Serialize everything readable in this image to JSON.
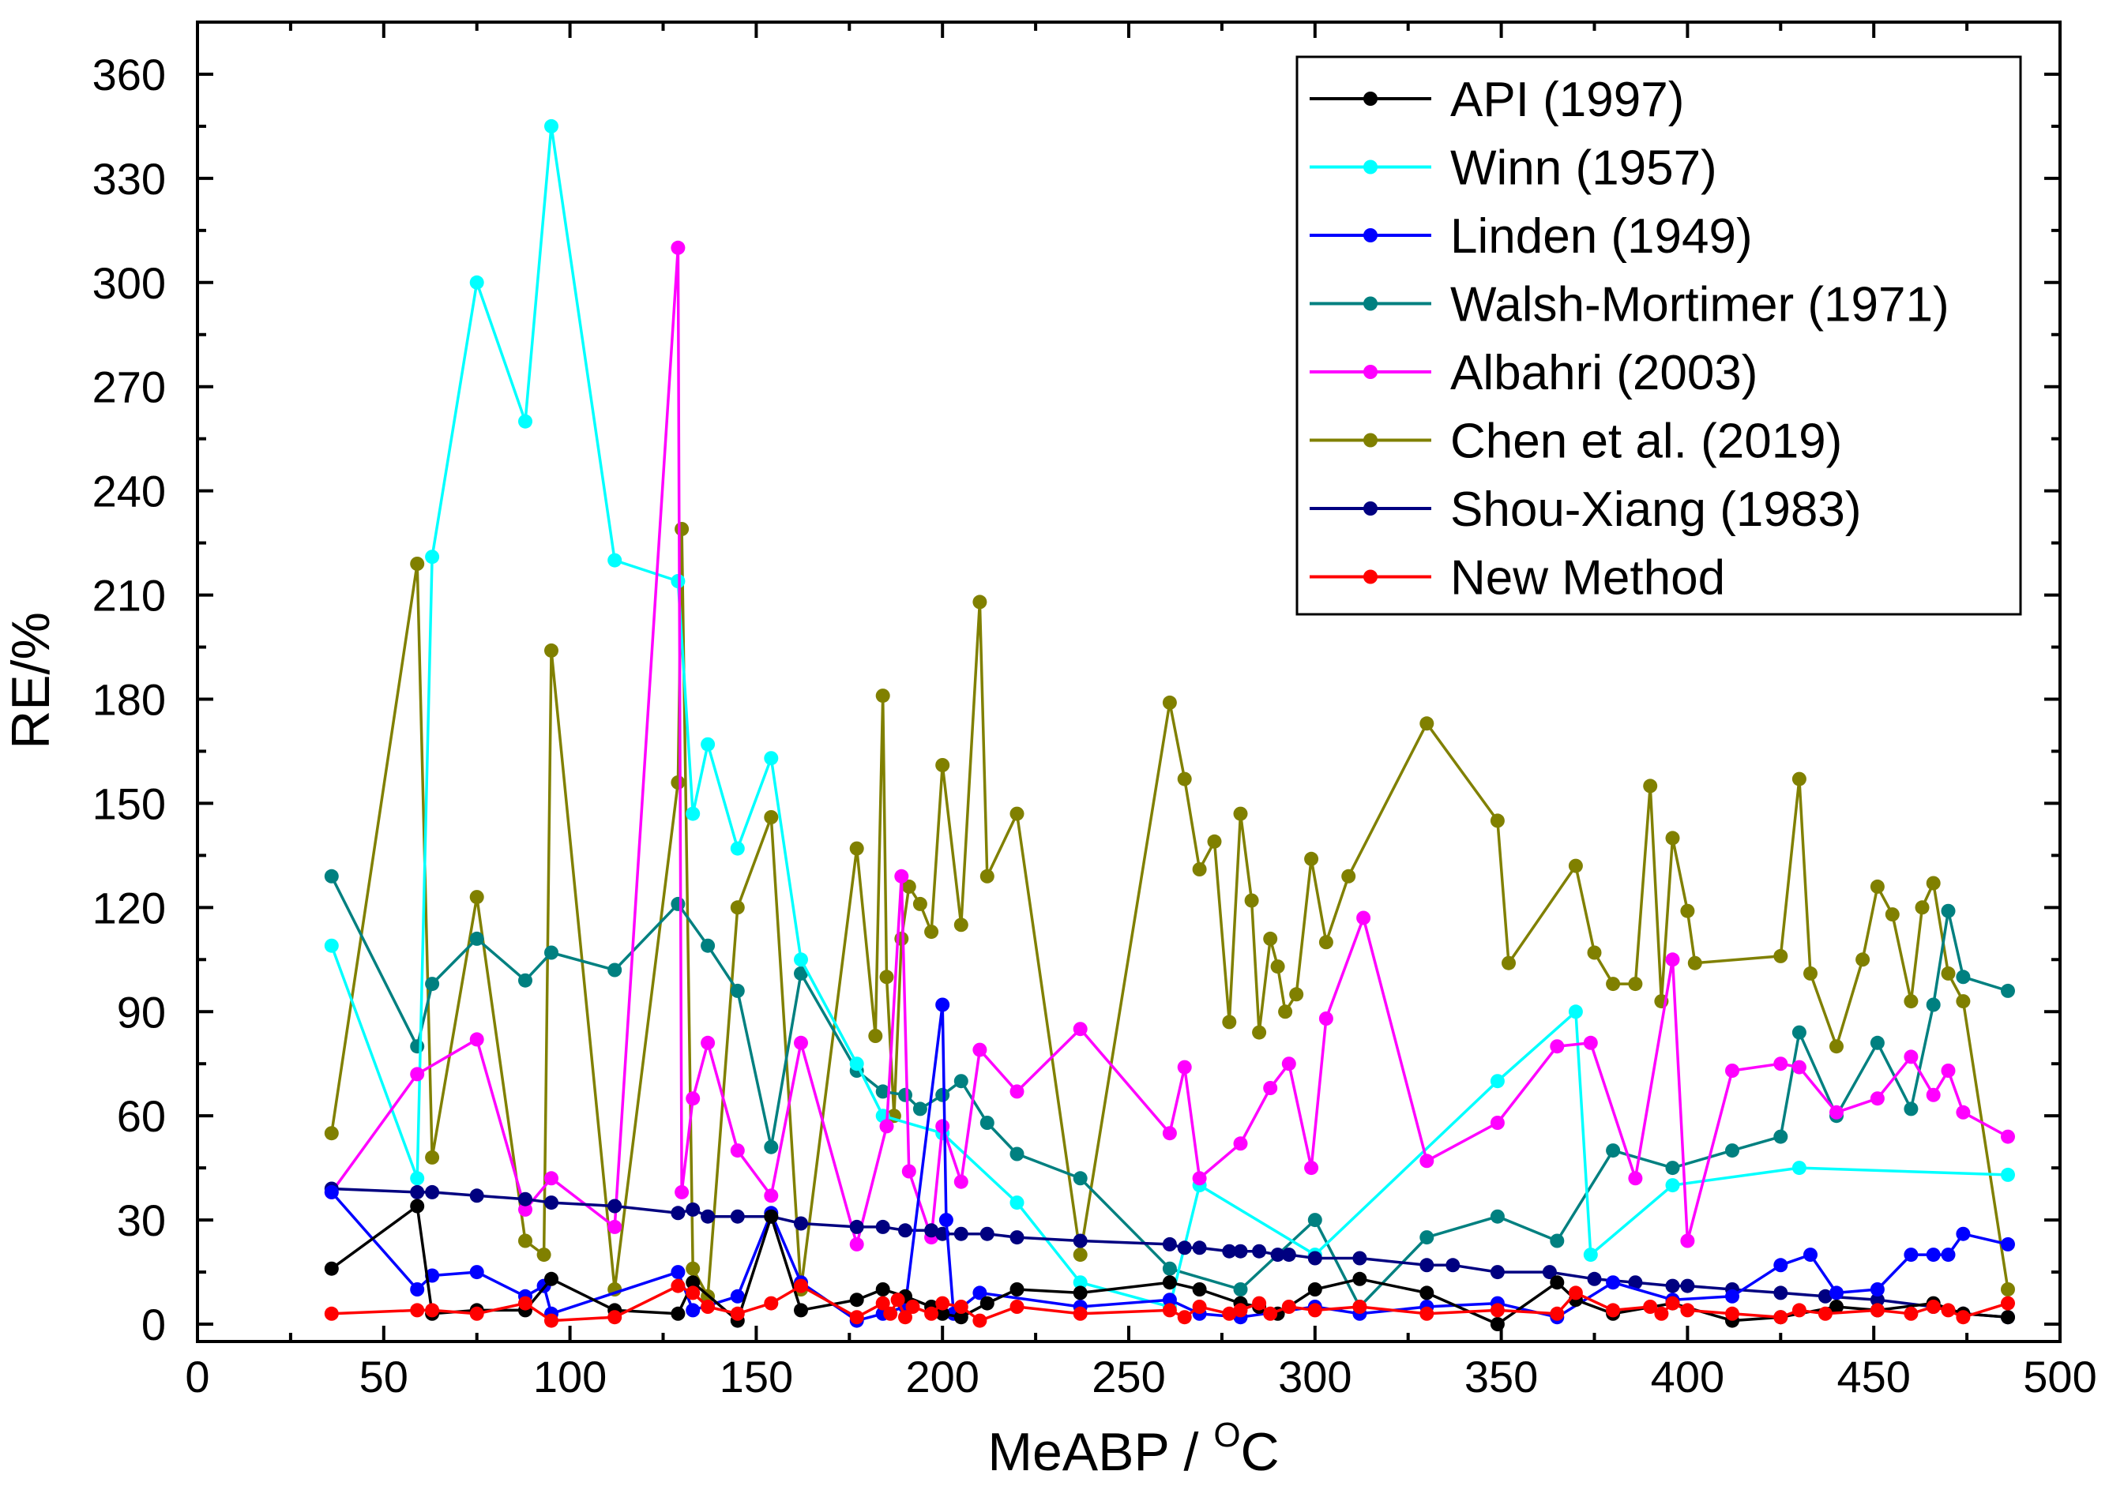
{
  "chart_data": {
    "type": "line",
    "title": "",
    "xlabel": "MeABP / ",
    "xlabel_unit_sup": "O",
    "xlabel_unit": "C",
    "ylabel": "RE/%",
    "xlim": [
      0,
      500
    ],
    "ylim": [
      -5,
      375
    ],
    "x_ticks": [
      0,
      50,
      100,
      150,
      200,
      250,
      300,
      350,
      400,
      450,
      500
    ],
    "x_tick_labels": [
      "0",
      "50",
      "100",
      "150",
      "200",
      "250",
      "300",
      "350",
      "400",
      "450",
      "500"
    ],
    "y_ticks": [
      0,
      30,
      60,
      90,
      120,
      150,
      180,
      210,
      240,
      270,
      300,
      330,
      360
    ],
    "y_tick_labels": [
      "0",
      "30",
      "60",
      "90",
      "120",
      "150",
      "180",
      "210",
      "240",
      "270",
      "300",
      "330",
      "360"
    ],
    "legend_position": "top-right",
    "series": [
      {
        "name": "Chen et al. (2019)",
        "color": "#808000",
        "x": [
          36,
          59,
          63,
          75,
          88,
          93,
          95,
          112,
          129,
          130,
          133,
          137,
          145,
          154,
          162,
          177,
          182,
          184,
          185,
          187,
          189,
          191,
          194,
          197,
          200,
          205,
          210,
          212,
          220,
          237,
          261,
          265,
          269,
          273,
          277,
          280,
          283,
          285,
          288,
          290,
          292,
          295,
          299,
          303,
          309,
          330,
          349,
          352,
          370,
          375,
          380,
          386,
          390,
          393,
          396,
          400,
          402,
          425,
          430,
          433,
          440,
          447,
          451,
          455,
          460,
          463,
          466,
          470,
          474,
          486
        ],
        "y": [
          55,
          219,
          48,
          123,
          24,
          20,
          194,
          10,
          156,
          229,
          16,
          8,
          120,
          146,
          10,
          137,
          83,
          181,
          100,
          60,
          111,
          126,
          121,
          113,
          161,
          115,
          208,
          129,
          147,
          20,
          179,
          157,
          131,
          139,
          87,
          147,
          122,
          84,
          111,
          103,
          90,
          95,
          134,
          110,
          129,
          173,
          145,
          104,
          132,
          107,
          98,
          98,
          155,
          93,
          140,
          119,
          104,
          106,
          157,
          101,
          80,
          105,
          126,
          118,
          93,
          120,
          127,
          101,
          93,
          10
        ]
      },
      {
        "name": "Walsh-Mortimer (1971)",
        "color": "#008080",
        "x": [
          36,
          59,
          63,
          75,
          88,
          95,
          112,
          129,
          137,
          145,
          154,
          162,
          177,
          184,
          190,
          194,
          200,
          205,
          212,
          220,
          237,
          261,
          280,
          300,
          312,
          330,
          349,
          365,
          380,
          396,
          412,
          425,
          430,
          440,
          451,
          460,
          466,
          470,
          474,
          486
        ],
        "y": [
          129,
          80,
          98,
          111,
          99,
          107,
          102,
          121,
          109,
          96,
          51,
          101,
          73,
          67,
          66,
          62,
          66,
          70,
          58,
          49,
          42,
          16,
          10,
          30,
          5,
          25,
          31,
          24,
          50,
          45,
          50,
          54,
          84,
          60,
          81,
          62,
          92,
          119,
          100,
          96
        ]
      },
      {
        "name": "Winn (1957)",
        "color": "#00ffff",
        "x": [
          36,
          59,
          63,
          75,
          88,
          95,
          112,
          129,
          133,
          137,
          145,
          154,
          162,
          177,
          184,
          200,
          220,
          237,
          261,
          269,
          300,
          349,
          370,
          374,
          396,
          430,
          486
        ],
        "y": [
          109,
          42,
          221,
          300,
          260,
          345,
          220,
          214,
          147,
          167,
          137,
          163,
          105,
          75,
          60,
          55,
          35,
          12,
          5,
          40,
          20,
          70,
          90,
          20,
          40,
          45,
          43
        ]
      },
      {
        "name": "Albahri (2003)",
        "color": "#ff00ff",
        "x": [
          36,
          59,
          75,
          88,
          95,
          112,
          129,
          130,
          133,
          137,
          145,
          154,
          162,
          177,
          185,
          189,
          191,
          197,
          200,
          205,
          210,
          220,
          237,
          261,
          265,
          269,
          280,
          288,
          293,
          299,
          303,
          313,
          330,
          349,
          365,
          374,
          386,
          396,
          400,
          412,
          425,
          430,
          440,
          451,
          460,
          466,
          470,
          474,
          486
        ],
        "y": [
          38,
          72,
          82,
          33,
          42,
          28,
          310,
          38,
          65,
          81,
          50,
          37,
          81,
          23,
          57,
          129,
          44,
          25,
          57,
          41,
          79,
          67,
          85,
          55,
          74,
          42,
          52,
          68,
          75,
          45,
          88,
          117,
          47,
          58,
          80,
          81,
          42,
          105,
          24,
          73,
          75,
          74,
          61,
          65,
          77,
          66,
          73,
          61,
          54
        ]
      },
      {
        "name": "Shou-Xiang (1983)",
        "color": "#000080",
        "x": [
          36,
          59,
          63,
          75,
          88,
          95,
          112,
          129,
          133,
          137,
          145,
          154,
          162,
          177,
          184,
          190,
          197,
          200,
          205,
          212,
          220,
          237,
          261,
          265,
          269,
          277,
          280,
          285,
          290,
          293,
          300,
          312,
          330,
          337,
          349,
          363,
          375,
          386,
          396,
          400,
          412,
          425,
          437,
          451,
          466,
          474,
          486
        ],
        "y": [
          39,
          38,
          38,
          37,
          36,
          35,
          34,
          32,
          33,
          31,
          31,
          31,
          29,
          28,
          28,
          27,
          27,
          26,
          26,
          26,
          25,
          24,
          23,
          22,
          22,
          21,
          21,
          21,
          20,
          20,
          19,
          19,
          17,
          17,
          15,
          15,
          13,
          12,
          11,
          11,
          10,
          9,
          8,
          7,
          5,
          3,
          2
        ]
      },
      {
        "name": "Linden (1949)",
        "color": "#0000ff",
        "x": [
          36,
          59,
          63,
          75,
          88,
          93,
          95,
          129,
          133,
          145,
          154,
          162,
          177,
          184,
          190,
          200,
          201,
          203,
          210,
          237,
          261,
          269,
          280,
          300,
          312,
          330,
          349,
          365,
          380,
          396,
          412,
          425,
          433,
          440,
          451,
          460,
          466,
          470,
          474,
          486
        ],
        "y": [
          38,
          10,
          14,
          15,
          8,
          11,
          3,
          15,
          4,
          8,
          32,
          12,
          1,
          3,
          5,
          92,
          30,
          3,
          9,
          5,
          7,
          3,
          2,
          5,
          3,
          5,
          6,
          2,
          12,
          7,
          8,
          17,
          20,
          9,
          10,
          20,
          20,
          20,
          26,
          23
        ]
      },
      {
        "name": "API (1997)",
        "color": "#000000",
        "x": [
          36,
          59,
          63,
          75,
          88,
          95,
          112,
          129,
          133,
          145,
          154,
          162,
          177,
          184,
          190,
          197,
          200,
          205,
          212,
          220,
          237,
          261,
          269,
          280,
          285,
          290,
          300,
          312,
          330,
          349,
          365,
          370,
          380,
          396,
          412,
          425,
          440,
          451,
          466,
          474,
          486
        ],
        "y": [
          16,
          34,
          3,
          4,
          4,
          13,
          4,
          3,
          12,
          1,
          31,
          4,
          7,
          10,
          8,
          5,
          3,
          2,
          6,
          10,
          9,
          12,
          10,
          6,
          5,
          3,
          10,
          13,
          9,
          0,
          12,
          7,
          3,
          6,
          1,
          2,
          5,
          4,
          6,
          3,
          2
        ]
      },
      {
        "name": "New Method",
        "color": "#ff0000",
        "x": [
          36,
          59,
          63,
          75,
          88,
          95,
          112,
          129,
          133,
          137,
          145,
          154,
          162,
          177,
          184,
          186,
          188,
          190,
          192,
          197,
          200,
          205,
          210,
          220,
          237,
          261,
          265,
          269,
          277,
          280,
          285,
          288,
          293,
          300,
          312,
          330,
          349,
          365,
          370,
          380,
          390,
          393,
          396,
          400,
          412,
          425,
          430,
          437,
          451,
          460,
          466,
          470,
          474,
          486
        ],
        "y": [
          3,
          4,
          4,
          3,
          6,
          1,
          2,
          11,
          9,
          5,
          3,
          6,
          11,
          2,
          6,
          3,
          7,
          2,
          5,
          3,
          6,
          5,
          1,
          5,
          3,
          4,
          2,
          5,
          3,
          4,
          6,
          3,
          5,
          4,
          5,
          3,
          4,
          3,
          9,
          4,
          5,
          3,
          6,
          4,
          3,
          2,
          4,
          3,
          4,
          3,
          5,
          4,
          2,
          6
        ]
      }
    ],
    "legend": [
      {
        "label": "API (1997)",
        "color": "#000000"
      },
      {
        "label": "Winn (1957)",
        "color": "#00ffff"
      },
      {
        "label": "Linden (1949)",
        "color": "#0000ff"
      },
      {
        "label": "Walsh-Mortimer (1971)",
        "color": "#008080"
      },
      {
        "label": "Albahri (2003)",
        "color": "#ff00ff"
      },
      {
        "label": "Chen et al. (2019)",
        "color": "#808000"
      },
      {
        "label": "Shou-Xiang (1983)",
        "color": "#000080"
      },
      {
        "label": "New Method",
        "color": "#ff0000"
      }
    ]
  }
}
